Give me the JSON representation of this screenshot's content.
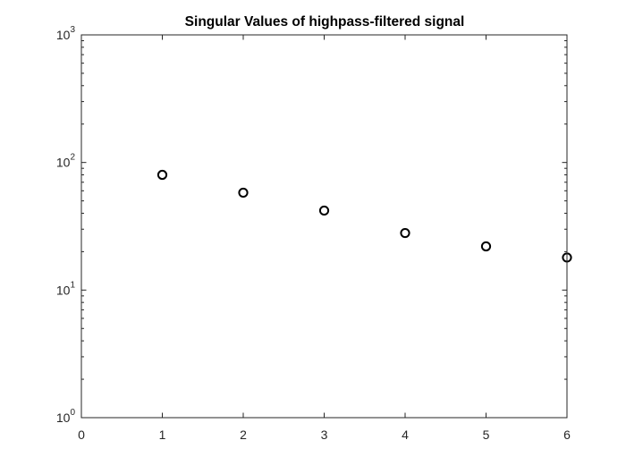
{
  "chart_data": {
    "type": "scatter",
    "title": "Singular Values of highpass-filtered signal",
    "xlabel": "",
    "ylabel": "",
    "xlim": [
      0,
      6
    ],
    "ylim": [
      1,
      1000
    ],
    "yscale": "log",
    "x_ticks": [
      "0",
      "1",
      "2",
      "3",
      "4",
      "5",
      "6"
    ],
    "y_ticks": [
      {
        "base": "10",
        "exp": "0"
      },
      {
        "base": "10",
        "exp": "1"
      },
      {
        "base": "10",
        "exp": "2"
      },
      {
        "base": "10",
        "exp": "3"
      }
    ],
    "grid": false,
    "marker": "circle-open",
    "marker_color": "#000000",
    "series": [
      {
        "x": [
          1,
          2,
          3,
          4,
          5,
          6
        ],
        "y": [
          80,
          58,
          42,
          28,
          22,
          18
        ]
      }
    ]
  }
}
